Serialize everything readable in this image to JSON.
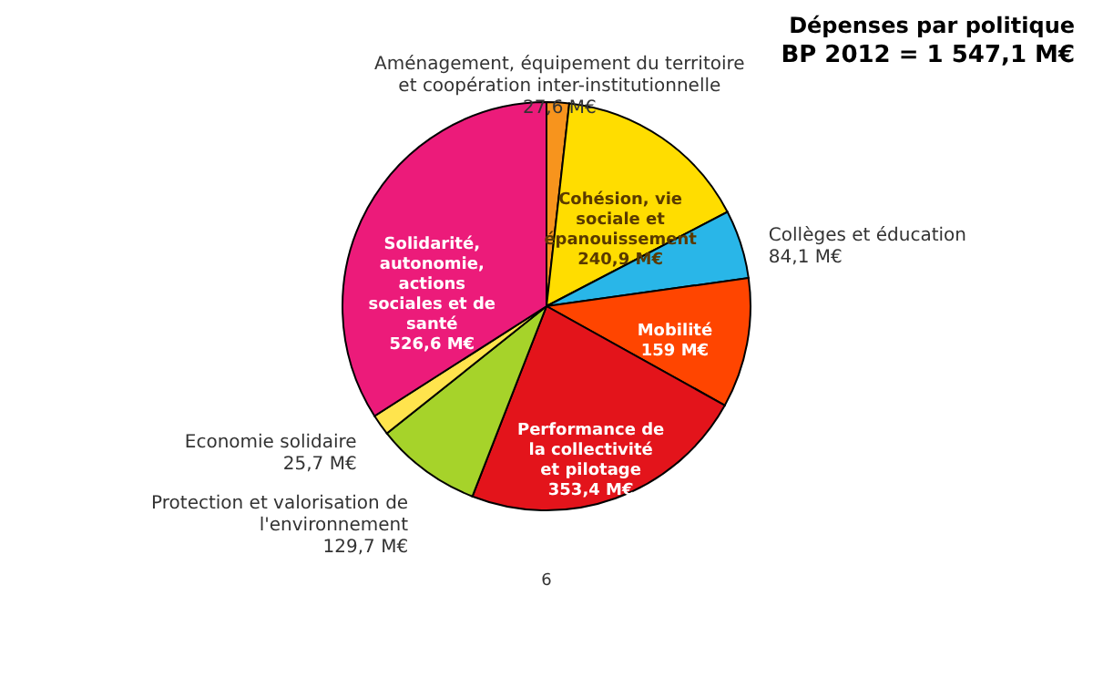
{
  "chart_data": {
    "type": "pie",
    "title": "Dépenses par politique",
    "subtitle": "BP 2012 = 1 547,1 M€",
    "categories": [
      "Aménagement, équipement du territoire et coopération inter-institutionnelle",
      "Cohésion, vie sociale et épanouissement",
      "Collèges et éducation",
      "Mobilité",
      "Performance de la collectivité et pilotage",
      "Protection et valorisation de l'environnement",
      "Economie solidaire",
      "Solidarité, autonomie, actions sociales et de santé"
    ],
    "values": [
      27.6,
      240.9,
      84.1,
      159,
      353.4,
      129.7,
      25.7,
      526.6
    ],
    "colors": [
      "#f7941d",
      "#ffdd00",
      "#29b6e8",
      "#ff4500",
      "#e3141b",
      "#a6d32a",
      "#ffe44d",
      "#ec1b7a"
    ],
    "value_labels": [
      "27,6 M€",
      "240,9 M€",
      "84,1 M€",
      "159 M€",
      "353,4 M€",
      "129,7 M€",
      "25,7 M€",
      "526,6 M€"
    ],
    "annotations": [
      "6"
    ]
  }
}
